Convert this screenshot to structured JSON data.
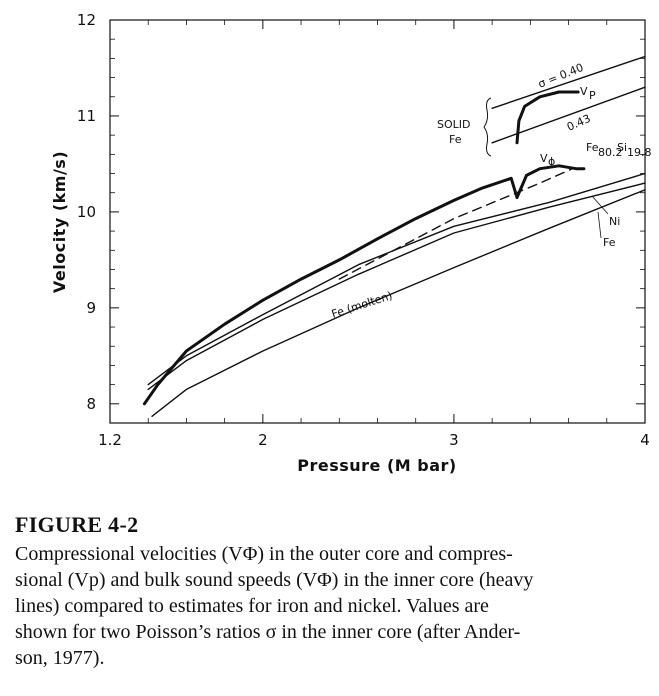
{
  "chart_data": {
    "type": "line",
    "xlabel": "Pressure (M bar)",
    "ylabel": "Velocity (km/s)",
    "xlim": [
      1.2,
      4.0
    ],
    "ylim": [
      7.8,
      12.0
    ],
    "x_ticks": [
      1.2,
      2,
      3,
      4
    ],
    "x_tick_labels": [
      "1.2",
      "2",
      "3",
      "4"
    ],
    "y_ticks": [
      8,
      9,
      10,
      11,
      12
    ],
    "y_tick_labels": [
      "8",
      "9",
      "10",
      "11",
      "12"
    ],
    "series": [
      {
        "name": "",
        "style": "heavy",
        "points": [
          [
            1.38,
            8.0
          ],
          [
            1.45,
            8.2
          ],
          [
            1.6,
            8.55
          ],
          [
            1.8,
            8.83
          ],
          [
            2.0,
            9.08
          ],
          [
            2.2,
            9.3
          ],
          [
            2.4,
            9.5
          ],
          [
            2.6,
            9.72
          ],
          [
            2.8,
            9.93
          ],
          [
            3.0,
            10.12
          ],
          [
            3.15,
            10.25
          ],
          [
            3.3,
            10.35
          ],
          [
            3.33,
            10.15
          ]
        ]
      },
      {
        "name": "V_P",
        "style": "heavy",
        "points": [
          [
            3.33,
            10.72
          ],
          [
            3.34,
            10.95
          ],
          [
            3.37,
            11.1
          ],
          [
            3.45,
            11.2
          ],
          [
            3.55,
            11.25
          ],
          [
            3.65,
            11.25
          ]
        ]
      },
      {
        "name": "V_Φ",
        "style": "heavy",
        "points": [
          [
            3.33,
            10.15
          ],
          [
            3.38,
            10.38
          ],
          [
            3.45,
            10.45
          ],
          [
            3.55,
            10.48
          ],
          [
            3.64,
            10.45
          ],
          [
            3.68,
            10.45
          ]
        ]
      },
      {
        "name": "σ = 0.40",
        "style": "thin",
        "points": [
          [
            3.2,
            11.08
          ],
          [
            4.0,
            11.62
          ]
        ]
      },
      {
        "name": "0.43",
        "style": "thin",
        "points": [
          [
            3.2,
            10.72
          ],
          [
            4.0,
            11.3
          ]
        ]
      },
      {
        "name": "Fe80.2Si19.8",
        "style": "dashed",
        "points": [
          [
            2.4,
            9.3
          ],
          [
            3.0,
            9.93
          ],
          [
            3.45,
            10.3
          ],
          [
            3.62,
            10.45
          ]
        ]
      },
      {
        "name": "Ni",
        "style": "thin",
        "points": [
          [
            1.4,
            8.2
          ],
          [
            1.6,
            8.5
          ],
          [
            2.0,
            8.93
          ],
          [
            2.5,
            9.45
          ],
          [
            3.0,
            9.85
          ],
          [
            3.5,
            10.1
          ],
          [
            4.0,
            10.4
          ]
        ]
      },
      {
        "name": "Fe",
        "style": "thin",
        "points": [
          [
            1.4,
            8.15
          ],
          [
            1.6,
            8.45
          ],
          [
            2.0,
            8.88
          ],
          [
            2.5,
            9.35
          ],
          [
            3.0,
            9.78
          ],
          [
            3.5,
            10.05
          ],
          [
            4.0,
            10.3
          ]
        ]
      },
      {
        "name": "Fe (molten)",
        "style": "thin",
        "points": [
          [
            1.42,
            7.87
          ],
          [
            1.6,
            8.15
          ],
          [
            2.0,
            8.55
          ],
          [
            2.5,
            9.0
          ],
          [
            3.0,
            9.42
          ],
          [
            3.5,
            9.83
          ],
          [
            4.0,
            10.23
          ]
        ]
      }
    ],
    "annotations": {
      "sigma": "σ = 0.40",
      "sigma2": "0.43",
      "vp": "V",
      "vp_sub": "P",
      "vphi": "V",
      "vphi_sub": "ϕ",
      "solid1": "SOLID",
      "solid2": "Fe",
      "fesi_main": "Fe",
      "fesi_sub1": "80.2",
      "fesi_mid": "Si",
      "fesi_sub2": "19.8",
      "ni": "Ni",
      "fe": "Fe",
      "molten": "Fe  (molten)"
    }
  },
  "caption": {
    "title": "FIGURE 4-2",
    "line1": "Compressional velocities (VΦ) in the outer core and compres-",
    "line2": "sional (Vp) and bulk sound speeds (VΦ) in the inner core (heavy",
    "line3": "lines) compared to estimates for iron and nickel. Values are",
    "line4": "shown for two Poisson’s ratios σ in the inner core (after Ander-",
    "line5": "son, 1977)."
  }
}
